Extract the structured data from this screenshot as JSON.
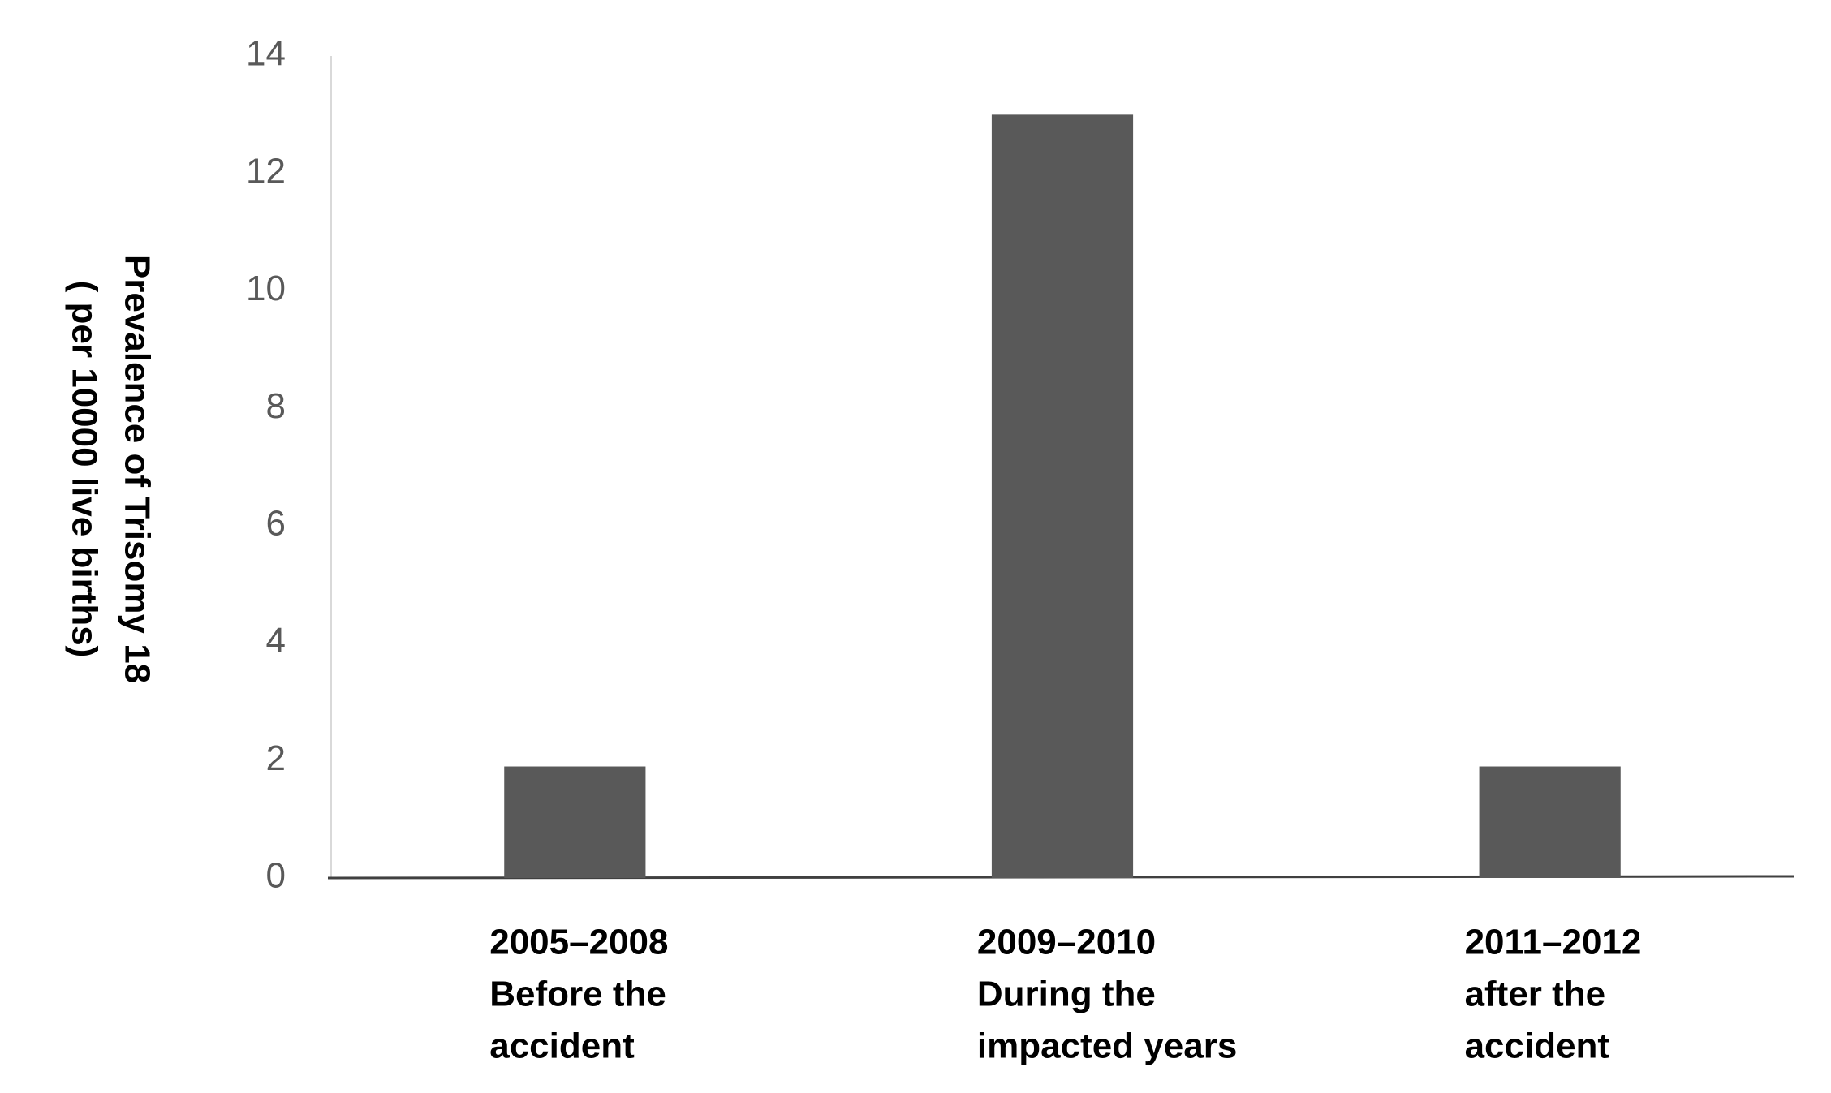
{
  "chart_data": {
    "type": "bar",
    "y_label": [
      "Prevalence of Trisomy 18",
      "( per 10000 live births)"
    ],
    "categories": [
      [
        "2005–2008",
        "Before the",
        "accident"
      ],
      [
        "2009–2010",
        "During the",
        "impacted years"
      ],
      [
        "2011–2012",
        "after the",
        "accident"
      ]
    ],
    "values": [
      1.9,
      13,
      1.9
    ],
    "color": "#595959",
    "ylim": [
      0,
      14
    ],
    "yticks": [
      0,
      2,
      4,
      6,
      8,
      10,
      12,
      14
    ],
    "grid": false
  }
}
